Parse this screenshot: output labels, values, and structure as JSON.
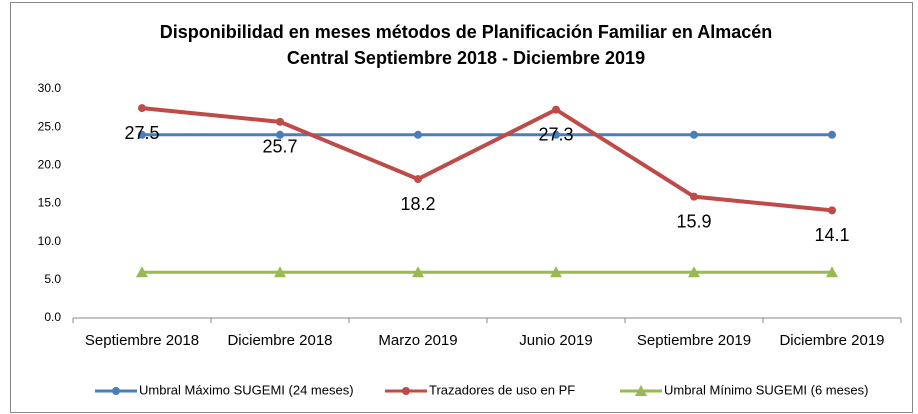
{
  "chart_data": {
    "type": "line",
    "title": [
      "Disponibilidad en meses métodos de Planificación Familiar en Almacén",
      "Central    Septiembre 2018 - Diciembre 2019"
    ],
    "categories": [
      "Septiembre 2018",
      "Diciembre 2018",
      "Marzo 2019",
      "Junio 2019",
      "Septiembre 2019",
      "Diciembre 2019"
    ],
    "series": [
      {
        "name": "Umbral Máximo SUGEMI (24 meses)",
        "color": "#4a7ebb",
        "marker": "circle",
        "values": [
          24,
          24,
          24,
          24,
          24,
          24
        ]
      },
      {
        "name": "Trazadores de uso en PF",
        "color": "#be4b48",
        "marker": "circle",
        "data_labels": true,
        "values": [
          27.5,
          25.7,
          18.2,
          27.3,
          15.9,
          14.1
        ]
      },
      {
        "name": "Umbral Mínimo SUGEMI (6 meses)",
        "color": "#98b954",
        "marker": "triangle",
        "values": [
          6,
          6,
          6,
          6,
          6,
          6
        ]
      }
    ],
    "ylim": [
      0,
      30
    ],
    "yticks": [
      {
        "value": 0,
        "label": "0.0"
      },
      {
        "value": 5,
        "label": "5.0"
      },
      {
        "value": 10,
        "label": "10.0"
      },
      {
        "value": 15,
        "label": "15.0"
      },
      {
        "value": 20,
        "label": "20.0"
      },
      {
        "value": 25,
        "label": "25.0"
      },
      {
        "value": 30,
        "label": "30.0"
      }
    ],
    "legend": "bottom"
  }
}
